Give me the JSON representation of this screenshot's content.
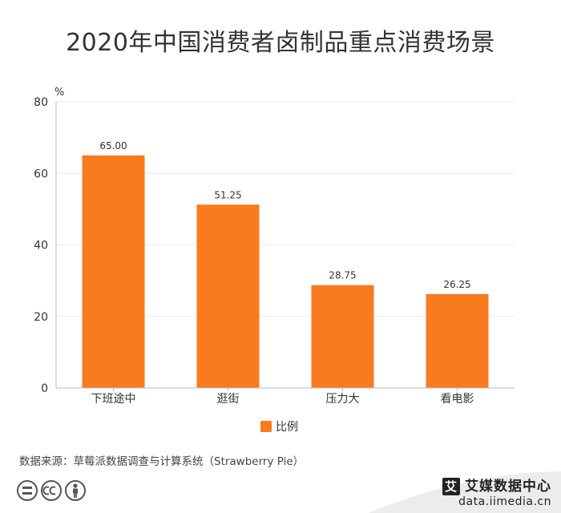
{
  "chart_data": {
    "type": "bar",
    "title": "2020年中国消费者卤制品重点消费场景",
    "ylabel": "%",
    "categories": [
      "下班途中",
      "逛街",
      "压力大",
      "看电影"
    ],
    "series": [
      {
        "name": "比例",
        "values": [
          65.0,
          51.25,
          28.75,
          26.25
        ],
        "color": "#f97a1f"
      }
    ],
    "value_labels": [
      "65.00",
      "51.25",
      "28.75",
      "26.25"
    ],
    "ylim": [
      0,
      80
    ],
    "yticks": [
      0,
      20,
      40,
      60,
      80
    ],
    "grid": true,
    "legend_position": "bottom"
  },
  "footer": {
    "source": "数据来源：草莓派数据调查与计算系统（Strawberry Pie）",
    "brand_name": "艾媒数据中心",
    "brand_badge": "艾",
    "brand_url": "data.iimedia.cn"
  },
  "icons": [
    "equal-icon",
    "cc-icon",
    "person-icon"
  ]
}
